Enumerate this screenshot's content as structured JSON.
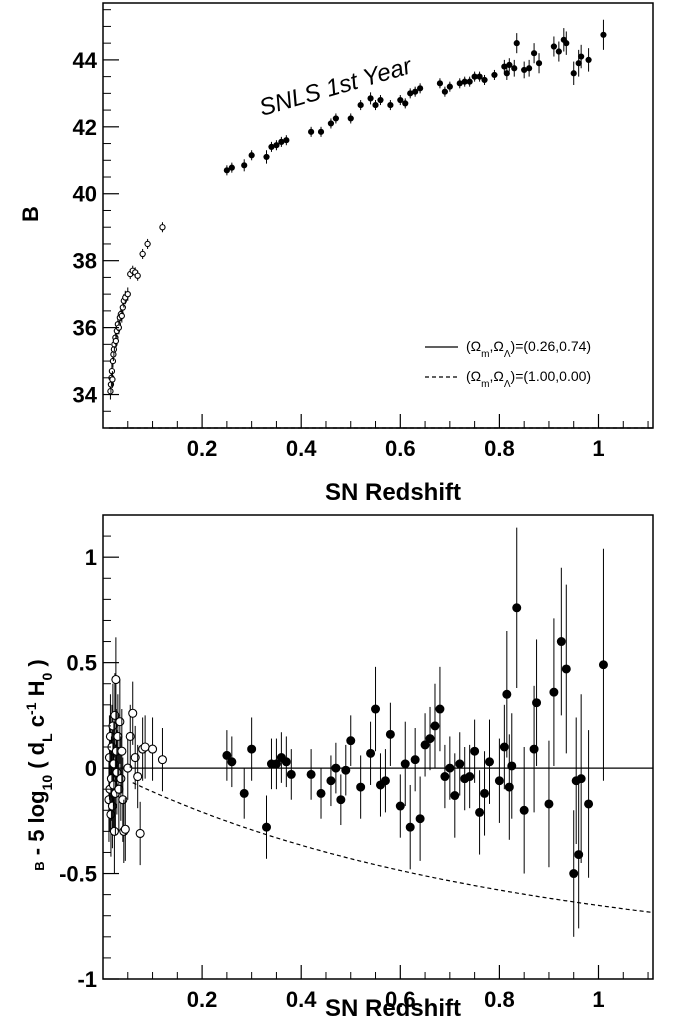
{
  "chart_data": [
    {
      "type": "scatter",
      "xlabel": "SN Redshift",
      "ylabel": "B",
      "xlim": [
        0.0,
        1.11
      ],
      "ylim": [
        33.0,
        45.7
      ],
      "xticks": [
        0.2,
        0.4,
        0.6,
        0.8,
        1
      ],
      "xtick_labels": [
        "0.2",
        "0.4",
        "0.6",
        "0.8",
        "1"
      ],
      "yticks": [
        34,
        36,
        38,
        40,
        42,
        44
      ],
      "ytick_labels": [
        "34",
        "36",
        "38",
        "40",
        "42",
        "44"
      ],
      "annotation": "SNLS 1st Year",
      "legend_position": "lower-right",
      "legend": [
        {
          "pre": "(Ω",
          "s1": "m",
          "mid": ",Ω",
          "s2": "Λ",
          "post": ")=(0.26,0.74)",
          "style": "solid",
          "om": 0.26,
          "ol": 0.74
        },
        {
          "pre": "(Ω",
          "s1": "m",
          "mid": ",Ω",
          "s2": "Λ",
          "post": ")=(1.00,0.00)",
          "style": "dashed",
          "om": 1.0,
          "ol": 0.0
        }
      ],
      "series": [
        {
          "marker": "open",
          "points": [
            [
              0.015,
              34.1,
              0.25
            ],
            [
              0.016,
              34.3,
              0.25
            ],
            [
              0.017,
              34.5,
              0.25
            ],
            [
              0.018,
              34.7,
              0.25
            ],
            [
              0.019,
              34.45,
              0.25
            ],
            [
              0.02,
              35.0,
              0.2
            ],
            [
              0.021,
              35.2,
              0.2
            ],
            [
              0.022,
              35.35,
              0.2
            ],
            [
              0.023,
              35.5,
              0.2
            ],
            [
              0.025,
              35.7,
              0.2
            ],
            [
              0.026,
              35.6,
              0.2
            ],
            [
              0.028,
              35.9,
              0.2
            ],
            [
              0.03,
              36.1,
              0.2
            ],
            [
              0.032,
              36.0,
              0.2
            ],
            [
              0.034,
              36.3,
              0.2
            ],
            [
              0.036,
              36.4,
              0.2
            ],
            [
              0.038,
              36.35,
              0.2
            ],
            [
              0.04,
              36.6,
              0.2
            ],
            [
              0.042,
              36.8,
              0.2
            ],
            [
              0.045,
              36.9,
              0.2
            ],
            [
              0.05,
              37.0,
              0.2
            ],
            [
              0.055,
              37.6,
              0.15
            ],
            [
              0.06,
              37.7,
              0.15
            ],
            [
              0.065,
              37.65,
              0.15
            ],
            [
              0.07,
              37.55,
              0.15
            ],
            [
              0.08,
              38.2,
              0.15
            ],
            [
              0.09,
              38.5,
              0.15
            ],
            [
              0.12,
              39.0,
              0.15
            ]
          ]
        },
        {
          "marker": "filled",
          "points": [
            [
              0.25,
              40.7,
              0.15
            ],
            [
              0.26,
              40.78,
              0.15
            ],
            [
              0.285,
              40.85,
              0.18
            ],
            [
              0.3,
              41.15,
              0.15
            ],
            [
              0.33,
              41.1,
              0.2
            ],
            [
              0.34,
              41.4,
              0.15
            ],
            [
              0.35,
              41.45,
              0.15
            ],
            [
              0.36,
              41.55,
              0.15
            ],
            [
              0.37,
              41.6,
              0.15
            ],
            [
              0.42,
              41.85,
              0.15
            ],
            [
              0.44,
              41.85,
              0.15
            ],
            [
              0.46,
              42.1,
              0.15
            ],
            [
              0.47,
              42.25,
              0.15
            ],
            [
              0.5,
              42.25,
              0.15
            ],
            [
              0.52,
              42.65,
              0.15
            ],
            [
              0.54,
              42.85,
              0.18
            ],
            [
              0.55,
              42.65,
              0.15
            ],
            [
              0.56,
              42.8,
              0.15
            ],
            [
              0.58,
              42.65,
              0.15
            ],
            [
              0.6,
              42.8,
              0.15
            ],
            [
              0.61,
              42.7,
              0.15
            ],
            [
              0.62,
              43.0,
              0.15
            ],
            [
              0.63,
              43.05,
              0.15
            ],
            [
              0.64,
              43.15,
              0.15
            ],
            [
              0.68,
              43.3,
              0.15
            ],
            [
              0.69,
              43.05,
              0.15
            ],
            [
              0.7,
              43.2,
              0.15
            ],
            [
              0.72,
              43.3,
              0.15
            ],
            [
              0.73,
              43.35,
              0.15
            ],
            [
              0.74,
              43.35,
              0.15
            ],
            [
              0.75,
              43.5,
              0.15
            ],
            [
              0.76,
              43.5,
              0.15
            ],
            [
              0.77,
              43.4,
              0.15
            ],
            [
              0.79,
              43.55,
              0.15
            ],
            [
              0.81,
              43.8,
              0.2
            ],
            [
              0.815,
              43.6,
              0.2
            ],
            [
              0.82,
              43.85,
              0.2
            ],
            [
              0.83,
              43.75,
              0.25
            ],
            [
              0.835,
              44.5,
              0.3
            ],
            [
              0.85,
              43.7,
              0.25
            ],
            [
              0.86,
              43.75,
              0.25
            ],
            [
              0.87,
              44.2,
              0.3
            ],
            [
              0.88,
              43.9,
              0.3
            ],
            [
              0.91,
              44.4,
              0.3
            ],
            [
              0.92,
              44.25,
              0.3
            ],
            [
              0.93,
              44.6,
              0.35
            ],
            [
              0.935,
              44.5,
              0.35
            ],
            [
              0.95,
              43.6,
              0.35
            ],
            [
              0.96,
              43.9,
              0.4
            ],
            [
              0.965,
              44.1,
              0.35
            ],
            [
              0.98,
              44.0,
              0.35
            ],
            [
              1.01,
              44.75,
              0.45
            ]
          ]
        }
      ]
    },
    {
      "type": "scatter",
      "xlabel": "SN Redshift",
      "ylabel": {
        "pre": "B",
        "mid": " - 5 log",
        "sub1": "10",
        "mid2": " ( d",
        "sub2": "L",
        "mid3": " c",
        "sup": "-1",
        "mid4": " H",
        "sub3": "0",
        "post": " )"
      },
      "xlim": [
        0.0,
        1.11
      ],
      "ylim": [
        -1.0,
        1.2
      ],
      "xticks": [
        0.2,
        0.4,
        0.6,
        0.8,
        1
      ],
      "xtick_labels": [
        "0.2",
        "0.4",
        "0.6",
        "0.8",
        "1"
      ],
      "yticks": [
        -1,
        -0.5,
        0,
        0.5,
        1
      ],
      "ytick_labels": [
        "-1",
        "-0.5",
        "0",
        "0.5",
        "1"
      ],
      "series": [
        {
          "marker": "open",
          "points": [
            [
              0.012,
              -0.15,
              0.2
            ],
            [
              0.013,
              0.05,
              0.2
            ],
            [
              0.014,
              -0.1,
              0.2
            ],
            [
              0.015,
              0.15,
              0.2
            ],
            [
              0.016,
              -0.22,
              0.2
            ],
            [
              0.017,
              -0.05,
              0.2
            ],
            [
              0.018,
              0.1,
              0.2
            ],
            [
              0.019,
              -0.18,
              0.2
            ],
            [
              0.02,
              0.2,
              0.2
            ],
            [
              0.021,
              -0.08,
              0.2
            ],
            [
              0.022,
              0.02,
              0.2
            ],
            [
              0.023,
              -0.3,
              0.2
            ],
            [
              0.024,
              0.25,
              0.2
            ],
            [
              0.025,
              -0.12,
              0.2
            ],
            [
              0.026,
              0.42,
              0.2
            ],
            [
              0.027,
              0.08,
              0.2
            ],
            [
              0.028,
              -0.02,
              0.2
            ],
            [
              0.03,
              0.15,
              0.2
            ],
            [
              0.032,
              -0.1,
              0.2
            ],
            [
              0.034,
              0.22,
              0.2
            ],
            [
              0.036,
              -0.05,
              0.2
            ],
            [
              0.038,
              0.08,
              0.2
            ],
            [
              0.04,
              -0.15,
              0.2
            ],
            [
              0.042,
              -0.3,
              0.15
            ],
            [
              0.045,
              -0.29,
              0.15
            ],
            [
              0.05,
              0.0,
              0.15
            ],
            [
              0.055,
              0.15,
              0.15
            ],
            [
              0.06,
              0.26,
              0.15
            ],
            [
              0.065,
              0.05,
              0.15
            ],
            [
              0.07,
              -0.04,
              0.15
            ],
            [
              0.075,
              -0.31,
              0.15
            ],
            [
              0.08,
              0.09,
              0.15
            ],
            [
              0.085,
              0.1,
              0.15
            ],
            [
              0.1,
              0.09,
              0.15
            ],
            [
              0.12,
              0.04,
              0.15
            ]
          ]
        },
        {
          "marker": "filled",
          "points": [
            [
              0.25,
              0.06,
              0.12
            ],
            [
              0.26,
              0.03,
              0.12
            ],
            [
              0.285,
              -0.12,
              0.12
            ],
            [
              0.3,
              0.09,
              0.15
            ],
            [
              0.33,
              -0.28,
              0.15
            ],
            [
              0.34,
              0.02,
              0.12
            ],
            [
              0.35,
              0.02,
              0.12
            ],
            [
              0.36,
              0.05,
              0.12
            ],
            [
              0.37,
              0.03,
              0.12
            ],
            [
              0.38,
              -0.03,
              0.12
            ],
            [
              0.42,
              -0.03,
              0.12
            ],
            [
              0.44,
              -0.12,
              0.12
            ],
            [
              0.46,
              -0.06,
              0.12
            ],
            [
              0.47,
              0.0,
              0.12
            ],
            [
              0.48,
              -0.15,
              0.12
            ],
            [
              0.49,
              -0.01,
              0.12
            ],
            [
              0.5,
              0.13,
              0.12
            ],
            [
              0.52,
              -0.09,
              0.15
            ],
            [
              0.54,
              0.07,
              0.15
            ],
            [
              0.55,
              0.28,
              0.2
            ],
            [
              0.56,
              -0.08,
              0.15
            ],
            [
              0.57,
              -0.06,
              0.15
            ],
            [
              0.58,
              0.16,
              0.15
            ],
            [
              0.6,
              -0.18,
              0.15
            ],
            [
              0.61,
              0.02,
              0.2
            ],
            [
              0.62,
              -0.28,
              0.2
            ],
            [
              0.63,
              0.04,
              0.15
            ],
            [
              0.64,
              -0.24,
              0.2
            ],
            [
              0.65,
              0.11,
              0.15
            ],
            [
              0.66,
              0.14,
              0.15
            ],
            [
              0.67,
              0.2,
              0.2
            ],
            [
              0.68,
              0.28,
              0.2
            ],
            [
              0.69,
              -0.04,
              0.15
            ],
            [
              0.7,
              0.0,
              0.15
            ],
            [
              0.71,
              -0.13,
              0.2
            ],
            [
              0.72,
              0.02,
              0.15
            ],
            [
              0.73,
              -0.05,
              0.15
            ],
            [
              0.74,
              -0.04,
              0.15
            ],
            [
              0.75,
              0.08,
              0.15
            ],
            [
              0.76,
              -0.21,
              0.2
            ],
            [
              0.77,
              -0.12,
              0.2
            ],
            [
              0.78,
              0.03,
              0.2
            ],
            [
              0.8,
              -0.06,
              0.2
            ],
            [
              0.81,
              0.1,
              0.2
            ],
            [
              0.815,
              0.35,
              0.3
            ],
            [
              0.82,
              -0.09,
              0.25
            ],
            [
              0.825,
              0.01,
              0.25
            ],
            [
              0.835,
              0.76,
              0.38
            ],
            [
              0.85,
              -0.2,
              0.3
            ],
            [
              0.87,
              0.09,
              0.3
            ],
            [
              0.875,
              0.31,
              0.3
            ],
            [
              0.9,
              -0.17,
              0.3
            ],
            [
              0.91,
              0.36,
              0.35
            ],
            [
              0.925,
              0.6,
              0.35
            ],
            [
              0.935,
              0.47,
              0.4
            ],
            [
              0.95,
              -0.5,
              0.3
            ],
            [
              0.955,
              -0.06,
              0.3
            ],
            [
              0.96,
              -0.41,
              0.35
            ],
            [
              0.965,
              -0.05,
              0.4
            ],
            [
              0.98,
              -0.17,
              0.35
            ],
            [
              1.01,
              0.49,
              0.55
            ]
          ]
        }
      ]
    }
  ]
}
